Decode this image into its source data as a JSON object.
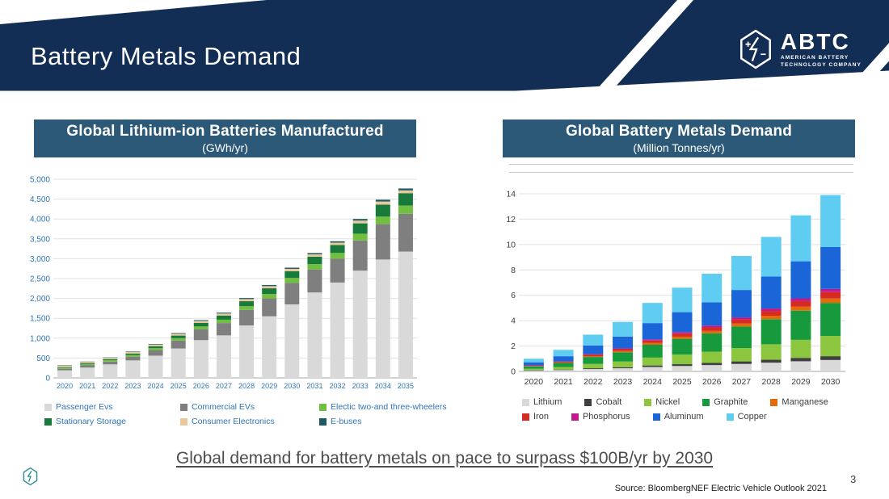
{
  "colors": {
    "header_navy": "#132e55",
    "title_box": "#2d5978",
    "axis_blue": "#2e75b6",
    "caption_gray": "#4d4d4d",
    "footer_logo_teal": "#2f8b92"
  },
  "header": {
    "title": "Battery Metals Demand",
    "logo": {
      "abbr": "ABTC",
      "line1": "AMERICAN BATTERY",
      "line2": "TECHNOLOGY COMPANY"
    }
  },
  "chart_data": [
    {
      "id": "left",
      "type": "bar",
      "stacked": true,
      "title": "Global Lithium-ion Batteries Manufactured",
      "subtitle": "(GWh/yr)",
      "categories": [
        "2020",
        "2021",
        "2022",
        "2023",
        "2024",
        "2025",
        "2026",
        "2027",
        "2028",
        "2029",
        "2030",
        "2031",
        "2032",
        "2033",
        "2034",
        "2035"
      ],
      "series": [
        {
          "name": "Passenger Evs",
          "color": "#d9d9d9",
          "values": [
            190,
            260,
            340,
            440,
            560,
            740,
            950,
            1070,
            1320,
            1550,
            1850,
            2150,
            2400,
            2700,
            2980,
            3180
          ]
        },
        {
          "name": "Commercial EVs",
          "color": "#7f7f7f",
          "values": [
            40,
            55,
            70,
            95,
            140,
            200,
            270,
            310,
            390,
            450,
            540,
            580,
            600,
            760,
            890,
            950
          ]
        },
        {
          "name": "Electic two-and three-wheelers",
          "color": "#70bf41",
          "values": [
            25,
            30,
            35,
            40,
            50,
            60,
            75,
            85,
            95,
            110,
            125,
            135,
            145,
            170,
            190,
            210
          ]
        },
        {
          "name": "Stationary Storage",
          "color": "#177a3a",
          "values": [
            15,
            20,
            25,
            35,
            45,
            65,
            90,
            105,
            125,
            145,
            170,
            185,
            200,
            260,
            300,
            310
          ]
        },
        {
          "name": "Consumer Electronics",
          "color": "#e8c79b",
          "values": [
            35,
            35,
            35,
            40,
            40,
            45,
            50,
            50,
            55,
            55,
            60,
            60,
            60,
            70,
            80,
            70
          ]
        },
        {
          "name": "E-buses",
          "color": "#1d5a66",
          "values": [
            10,
            10,
            10,
            12,
            15,
            18,
            20,
            22,
            25,
            28,
            30,
            32,
            34,
            40,
            45,
            48
          ]
        }
      ],
      "ylim": [
        0,
        5000
      ],
      "yticks": [
        0,
        500,
        1000,
        1500,
        2000,
        2500,
        3000,
        3500,
        4000,
        4500,
        5000
      ],
      "ytick_labels": [
        "0",
        "500",
        "1,000",
        "1,500",
        "2,000",
        "2,500",
        "3,000",
        "3,500",
        "4,000",
        "4,500",
        "5,000"
      ],
      "grid": true,
      "legend_rows": [
        3,
        3
      ],
      "legend_position": "bottom"
    },
    {
      "id": "right",
      "type": "bar",
      "stacked": true,
      "title": "Global Battery Metals Demand",
      "subtitle": "(Million Tonnes/yr)",
      "categories": [
        "2020",
        "2021",
        "2022",
        "2023",
        "2024",
        "2025",
        "2026",
        "2027",
        "2028",
        "2029",
        "2030"
      ],
      "series": [
        {
          "name": "Lithium",
          "color": "#d9d9d9",
          "values": [
            0.07,
            0.11,
            0.19,
            0.25,
            0.35,
            0.43,
            0.5,
            0.59,
            0.69,
            0.8,
            0.9
          ]
        },
        {
          "name": "Cobalt",
          "color": "#3f3f3f",
          "values": [
            0.02,
            0.04,
            0.06,
            0.08,
            0.12,
            0.14,
            0.17,
            0.2,
            0.23,
            0.27,
            0.3
          ]
        },
        {
          "name": "Nickel",
          "color": "#8cc63e",
          "values": [
            0.12,
            0.2,
            0.34,
            0.45,
            0.62,
            0.76,
            0.89,
            1.05,
            1.22,
            1.42,
            1.6
          ]
        },
        {
          "name": "Graphite",
          "color": "#169a3d",
          "values": [
            0.19,
            0.32,
            0.55,
            0.73,
            1.01,
            1.24,
            1.44,
            1.7,
            1.98,
            2.3,
            2.6
          ]
        },
        {
          "name": "Manganese",
          "color": "#e36c0a",
          "values": [
            0.03,
            0.04,
            0.07,
            0.1,
            0.14,
            0.17,
            0.19,
            0.23,
            0.27,
            0.31,
            0.35
          ]
        },
        {
          "name": "Iron",
          "color": "#d62b22",
          "values": [
            0.03,
            0.06,
            0.1,
            0.14,
            0.19,
            0.24,
            0.28,
            0.33,
            0.38,
            0.44,
            0.5
          ]
        },
        {
          "name": "Phosphorus",
          "color": "#c01a8e",
          "values": [
            0.02,
            0.03,
            0.05,
            0.07,
            0.1,
            0.12,
            0.14,
            0.16,
            0.19,
            0.22,
            0.25
          ]
        },
        {
          "name": "Aluminum",
          "color": "#1a66d9",
          "values": [
            0.24,
            0.4,
            0.69,
            0.93,
            1.28,
            1.57,
            1.83,
            2.16,
            2.52,
            2.92,
            3.3
          ]
        },
        {
          "name": "Copper",
          "color": "#5fcdf2",
          "values": [
            0.28,
            0.5,
            0.85,
            1.15,
            1.59,
            1.93,
            2.26,
            2.68,
            3.12,
            3.62,
            4.1
          ]
        }
      ],
      "ylim": [
        0,
        14
      ],
      "yticks": [
        0,
        2,
        4,
        6,
        8,
        10,
        12,
        14
      ],
      "ytick_labels": [
        "0",
        "2",
        "4",
        "6",
        "8",
        "10",
        "12",
        "14"
      ],
      "grid": true,
      "legend_rows": [
        5,
        4
      ],
      "legend_position": "bottom"
    }
  ],
  "footer": {
    "caption": "Global demand for battery metals on pace to surpass $100B/yr by 2030",
    "source": "Source:  BloombergNEF Electric Vehicle Outlook 2021",
    "page_number": "3"
  }
}
